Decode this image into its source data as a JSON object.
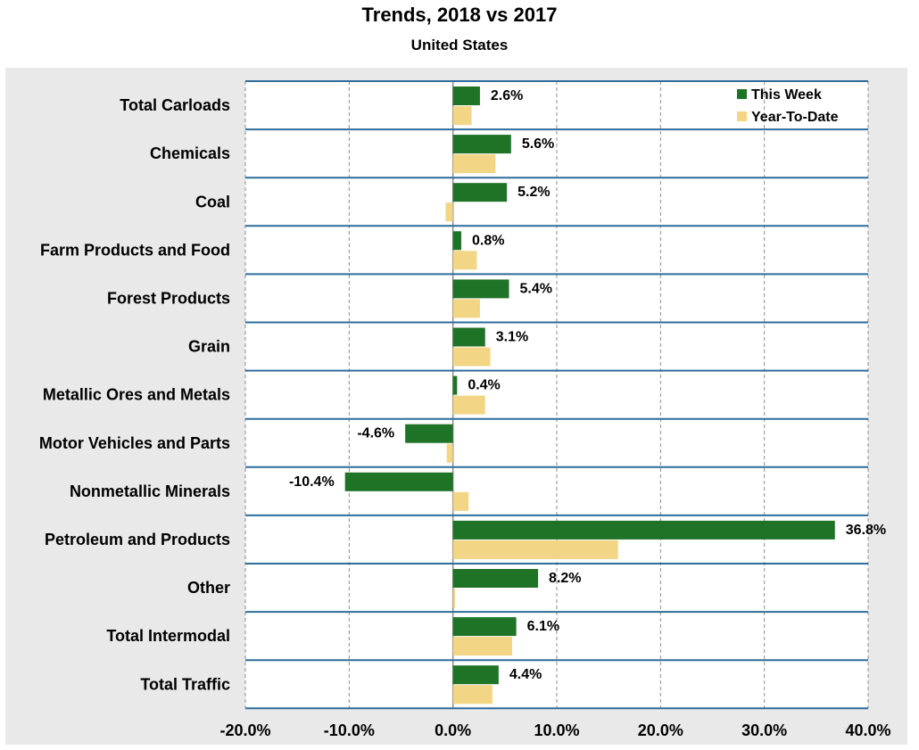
{
  "chart_data": {
    "type": "bar",
    "orientation": "horizontal",
    "title": "Trends, 2018 vs 2017",
    "subtitle": "United States",
    "categories": [
      "Total Carloads",
      "Chemicals",
      "Coal",
      "Farm Products and Food",
      "Forest Products",
      "Grain",
      "Metallic Ores and Metals",
      "Motor Vehicles and Parts",
      "Nonmetallic Minerals",
      "Petroleum and Products",
      "Other",
      "Total Intermodal",
      "Total Traffic"
    ],
    "series": [
      {
        "name": "This Week",
        "color": "#1e7327",
        "values": [
          2.6,
          5.6,
          5.2,
          0.8,
          5.4,
          3.1,
          0.4,
          -4.6,
          -10.4,
          36.8,
          8.2,
          6.1,
          4.4
        ],
        "labels": [
          "2.6%",
          "5.6%",
          "5.2%",
          "0.8%",
          "5.4%",
          "3.1%",
          "0.4%",
          "-4.6%",
          "-10.4%",
          "36.8%",
          "8.2%",
          "6.1%",
          "4.4%"
        ]
      },
      {
        "name": "Year-To-Date",
        "color": "#f2d585",
        "values": [
          1.8,
          4.1,
          -0.7,
          2.3,
          2.6,
          3.6,
          3.1,
          -0.6,
          1.5,
          15.9,
          0.2,
          5.7,
          3.8
        ]
      }
    ],
    "xlim": [
      -20,
      40
    ],
    "xticks": [
      -20,
      -10,
      0,
      10,
      20,
      30,
      40
    ],
    "xtick_labels": [
      "-20.0%",
      "-10.0%",
      "0.0%",
      "10.0%",
      "20.0%",
      "30.0%",
      "40.0%"
    ],
    "grid": true,
    "legend": "top-right",
    "colors": {
      "background": "#e9e9e9",
      "plot": "#ffffff",
      "separator": "#2e6c9c",
      "grid": "#8c8c8c"
    }
  }
}
